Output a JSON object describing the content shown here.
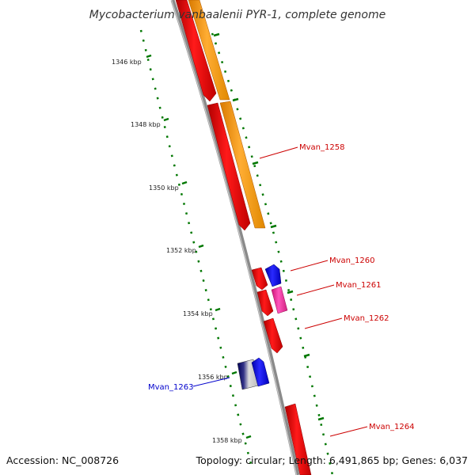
{
  "title": "Mycobacterium vanbaalenii PYR-1, complete genome",
  "footer": {
    "accession": "Accession: NC_008726",
    "summary": "Topology: circular; Length: 6,491,865 bp; Genes: 6,037"
  },
  "ticks": [
    "1346 kbp",
    "1348 kbp",
    "1350 kbp",
    "1352 kbp",
    "1354 kbp",
    "1356 kbp",
    "1358 kbp"
  ],
  "genes": [
    {
      "label": "Mvan_1258",
      "color": "#cc0000"
    },
    {
      "label": "Mvan_1260",
      "color": "#cc0000"
    },
    {
      "label": "Mvan_1261",
      "color": "#cc0000"
    },
    {
      "label": "Mvan_1262",
      "color": "#cc0000"
    },
    {
      "label": "Mvan_1263",
      "color": "#0000cc"
    },
    {
      "label": "Mvan_1264",
      "color": "#cc0000"
    }
  ],
  "colors": {
    "red": "#ff0000",
    "orange": "#ff9900",
    "blue": "#0000ff",
    "magenta": "#ff33aa",
    "navy": "#000066",
    "backbone": "#888888",
    "tick_mark": "#007700"
  }
}
